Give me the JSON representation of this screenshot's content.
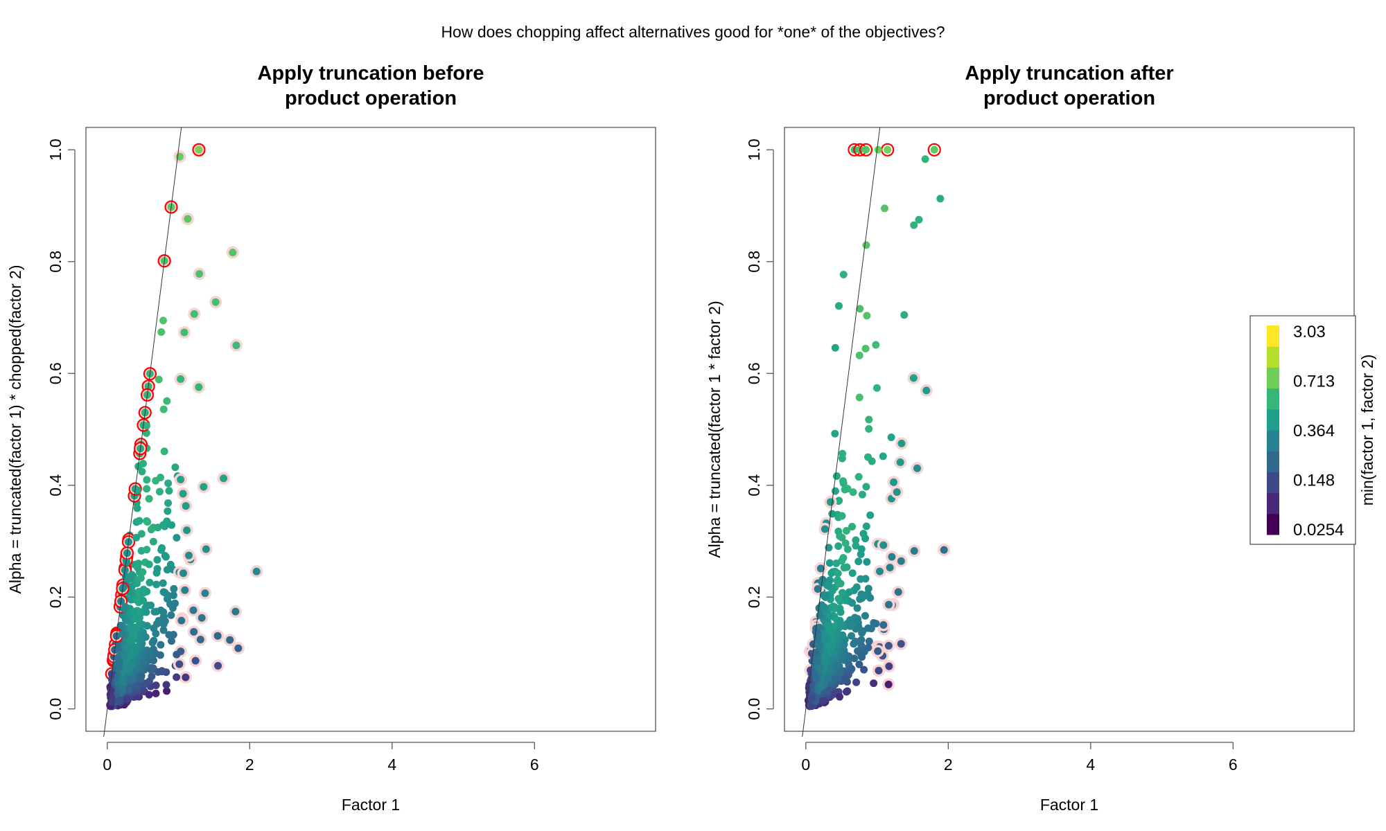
{
  "figure": {
    "suptitle": "How does chopping affect alternatives good for *one* of the objectives?"
  },
  "chart_data": [
    {
      "type": "scatter",
      "title_line1": "Apply truncation before",
      "title_line2": "product operation",
      "xlabel": "Factor 1",
      "ylabel": "Alpha = truncated(factor 1) * chopped(factor 2)",
      "xlim": [
        -0.3,
        7.7
      ],
      "ylim": [
        -0.04,
        1.04
      ],
      "xticks": [
        0,
        2,
        4,
        6
      ],
      "yticks": [
        0.0,
        0.2,
        0.4,
        0.6,
        0.8,
        1.0
      ],
      "reference_line": {
        "x0": 0,
        "y0": 0,
        "x1": 1,
        "y1": 1,
        "extends": "y = x"
      },
      "color_by": "min(factor 1, factor 2)",
      "highlight": "red outlined circles along the y = x edge and at the Alpha = 1.0 cap; faint pink rings on points good for one objective",
      "marker_color": "#ff0000",
      "n_points": 800
    },
    {
      "type": "scatter",
      "title_line1": "Apply truncation after",
      "title_line2": "product operation",
      "xlabel": "Factor 1",
      "ylabel": "Alpha = truncated(factor 1 * factor 2)",
      "xlim": [
        -0.3,
        7.7
      ],
      "ylim": [
        -0.04,
        1.04
      ],
      "xticks": [
        0,
        2,
        4,
        6
      ],
      "yticks": [
        0.0,
        0.2,
        0.4,
        0.6,
        0.8,
        1.0
      ],
      "reference_line": {
        "x0": 0,
        "y0": 0,
        "x1": 1,
        "y1": 1,
        "extends": "y = x"
      },
      "color_by": "min(factor 1, factor 2)",
      "highlight": "red outlined circles for chopped points; faint pink rings on points good for one objective",
      "marker_color": "#ff0000",
      "n_points": 800
    }
  ],
  "colorbar": {
    "label": "min(factor 1, factor 2)",
    "ticks": [
      "3.03",
      "0.713",
      "0.364",
      "0.148",
      "0.0254"
    ],
    "colors": [
      "#440154",
      "#482878",
      "#3e4989",
      "#31688e",
      "#26828e",
      "#1f9e89",
      "#35b779",
      "#6ece58",
      "#b5de2b",
      "#fde725"
    ]
  }
}
